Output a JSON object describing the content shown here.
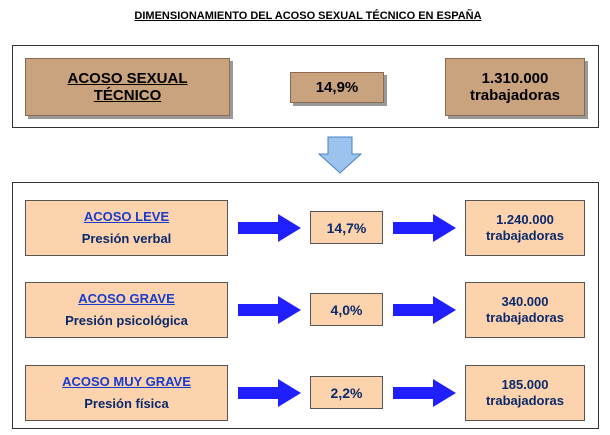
{
  "title": "DIMENSIONAMIENTO DEL ACOSO SEXUAL TÉCNICO EN ESPAÑA",
  "summary": {
    "label": "ACOSO SEXUAL TÉCNICO",
    "rate": "14,9%",
    "count": "1.310.000",
    "unit": "trabajadoras"
  },
  "levels": [
    {
      "label": "ACOSO LEVE",
      "description": "Presión verbal",
      "rate": "14,7%",
      "count": "1.240.000",
      "unit": "trabajadoras"
    },
    {
      "label": "ACOSO GRAVE",
      "description": "Presión psicológica",
      "rate": "4,0%",
      "count": "340.000",
      "unit": "trabajadoras"
    },
    {
      "label": "ACOSO MUY GRAVE",
      "description": "Presión física",
      "rate": "2,2%",
      "count": "185.000",
      "unit": "trabajadoras"
    }
  ]
}
